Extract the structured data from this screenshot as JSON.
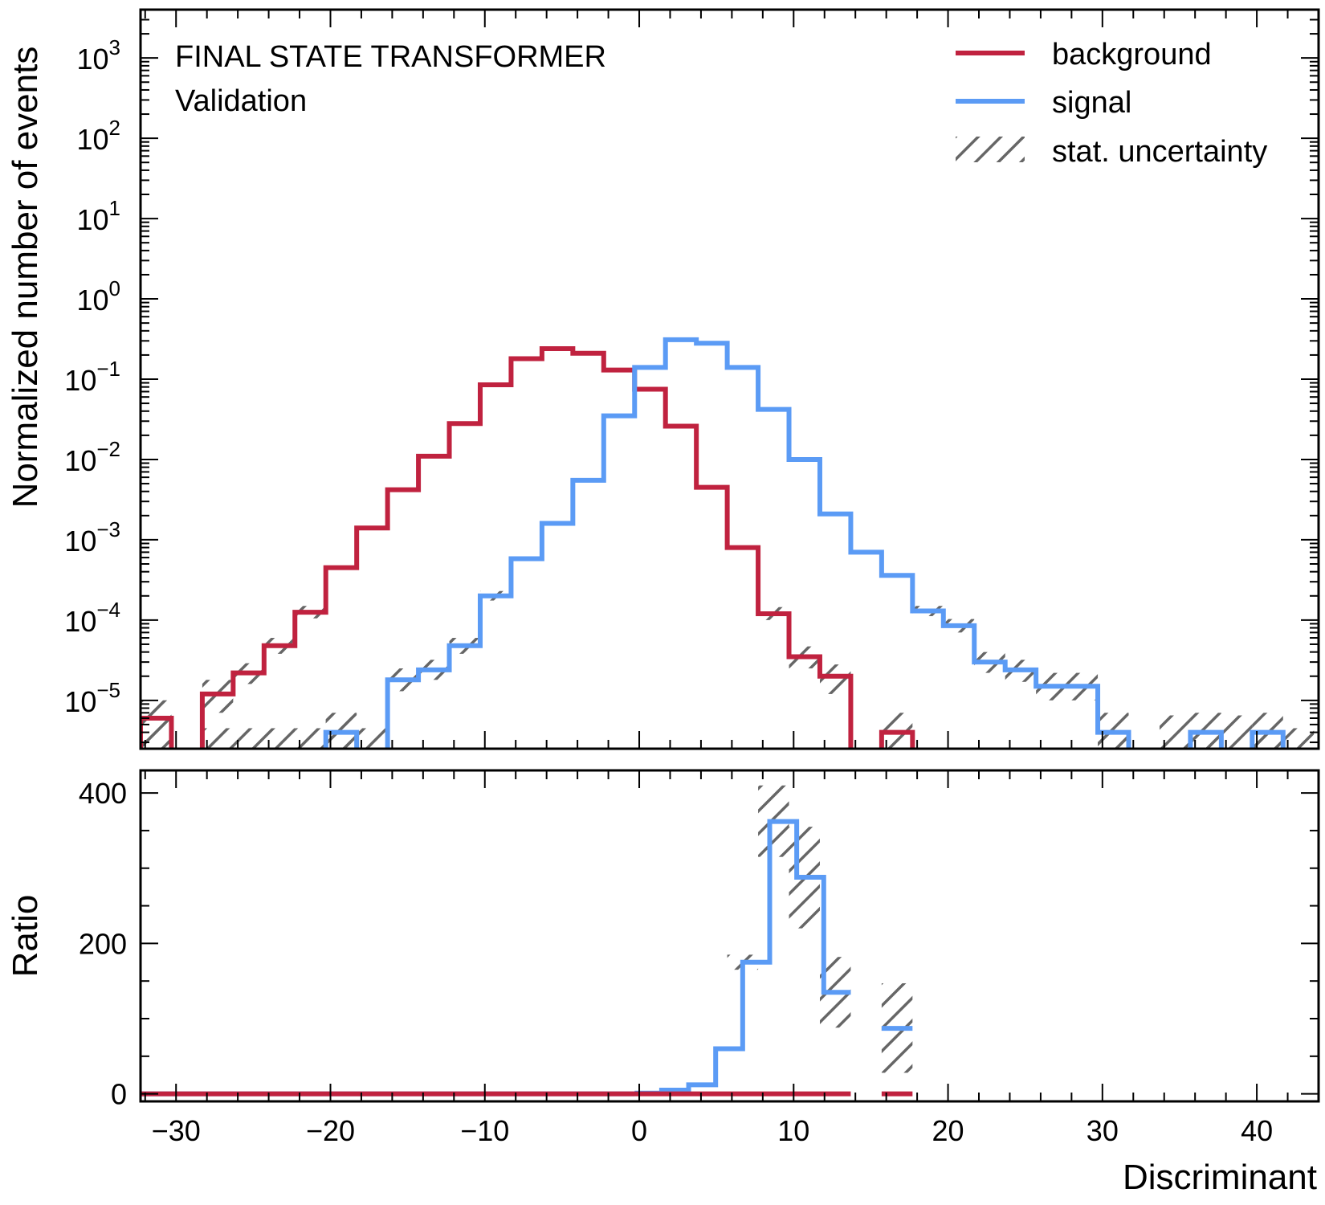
{
  "chart_data": [
    {
      "type": "step",
      "panel": "main",
      "annotations": [
        "FINAL STATE TRANSFORMER",
        "Validation"
      ],
      "xlabel": "",
      "ylabel": "Normalized number of events",
      "yscale": "log",
      "ylim": [
        2.5e-06,
        4000
      ],
      "y_ticks": [
        {
          "value": 1e-05,
          "base": "10",
          "exp": "−5"
        },
        {
          "value": 0.0001,
          "base": "10",
          "exp": "−4"
        },
        {
          "value": 0.001,
          "base": "10",
          "exp": "−3"
        },
        {
          "value": 0.01,
          "base": "10",
          "exp": "−2"
        },
        {
          "value": 0.1,
          "base": "10",
          "exp": "−1"
        },
        {
          "value": 1,
          "base": "10",
          "exp": "0"
        },
        {
          "value": 10,
          "base": "10",
          "exp": "1"
        },
        {
          "value": 100,
          "base": "10",
          "exp": "2"
        },
        {
          "value": 1000,
          "base": "10",
          "exp": "3"
        }
      ],
      "xlim": [
        -32.3,
        44
      ],
      "bin_edges": [
        -32.3,
        -30.3,
        -28.3,
        -26.3,
        -24.3,
        -22.3,
        -20.3,
        -18.3,
        -16.3,
        -14.3,
        -12.3,
        -10.3,
        -8.3,
        -6.3,
        -4.3,
        -2.3,
        -0.3,
        1.7,
        3.7,
        5.7,
        7.7,
        9.7,
        11.7,
        13.7,
        15.7,
        17.7,
        19.7,
        21.7,
        23.7,
        25.7,
        27.7,
        29.7,
        31.7,
        33.7,
        35.7,
        37.7,
        39.7,
        41.7,
        43.7
      ],
      "legend": {
        "position": "upper right",
        "entries": [
          "background",
          "signal",
          "stat. uncertainty"
        ]
      },
      "series": [
        {
          "name": "background",
          "color": "#c0223f",
          "values": [
            6e-06,
            0,
            1.2e-05,
            2.2e-05,
            4.8e-05,
            0.000125,
            0.00045,
            0.0014,
            0.0042,
            0.011,
            0.028,
            0.085,
            0.18,
            0.24,
            0.21,
            0.13,
            0.075,
            0.026,
            0.0045,
            0.0008,
            0.00012,
            3.5e-05,
            2e-05,
            0,
            4e-06,
            0,
            0,
            0,
            0,
            0,
            0,
            0,
            0,
            0,
            0,
            0,
            0,
            0
          ],
          "err_low": [
            3e-06,
            0,
            5e-06,
            6e-06,
            1e-05,
            2e-05,
            0,
            0,
            0,
            0,
            0,
            0,
            0,
            0,
            0,
            0,
            0,
            0,
            0,
            0,
            2e-05,
            1e-05,
            8e-06,
            0,
            2e-06,
            0,
            0,
            0,
            0,
            0,
            0,
            0,
            0,
            0,
            0,
            0,
            0,
            0
          ],
          "err_high": [
            4e-06,
            0,
            6e-06,
            7e-06,
            1.2e-05,
            2.5e-05,
            0,
            0,
            0,
            0,
            0,
            0,
            0,
            0,
            0,
            0,
            0,
            0,
            0,
            0,
            2.5e-05,
            1.2e-05,
            8e-06,
            0,
            3e-06,
            0,
            0,
            0,
            0,
            0,
            0,
            0,
            0,
            0,
            0,
            0,
            0,
            0
          ]
        },
        {
          "name": "signal",
          "color": "#5b9bf5",
          "values": [
            0,
            0,
            0,
            0,
            0,
            0,
            4e-06,
            0,
            1.8e-05,
            2.4e-05,
            4.8e-05,
            0.0002,
            0.00058,
            0.0016,
            0.0055,
            0.035,
            0.14,
            0.31,
            0.28,
            0.14,
            0.042,
            0.01,
            0.0021,
            0.0007,
            0.00036,
            0.00013,
            8.5e-05,
            3e-05,
            2.4e-05,
            1.5e-05,
            1.5e-05,
            4e-06,
            0,
            0,
            4e-06,
            0,
            4e-06,
            0
          ],
          "err_low": [
            0,
            0,
            0,
            0,
            0,
            0,
            2e-06,
            0,
            5e-06,
            6e-06,
            1e-05,
            2.5e-05,
            0,
            0,
            0,
            0,
            0,
            0,
            0,
            0,
            0,
            0,
            0,
            0,
            0,
            1.8e-05,
            1.5e-05,
            8e-06,
            7e-06,
            5e-06,
            5e-06,
            2e-06,
            0,
            0,
            2e-06,
            0,
            2e-06,
            0
          ],
          "err_high": [
            0,
            0,
            0,
            0,
            0,
            0,
            3e-06,
            0,
            7e-06,
            8e-06,
            1.2e-05,
            3e-05,
            0,
            0,
            0,
            0,
            0,
            0,
            0,
            0,
            0,
            0,
            0,
            0,
            0,
            2e-05,
            1.8e-05,
            1e-05,
            8e-06,
            7e-06,
            7e-06,
            3e-06,
            0,
            0,
            3e-06,
            0,
            3e-06,
            0
          ]
        }
      ],
      "uncertainty_band_extra_bins": [
        {
          "from": -32.3,
          "to": -30.3,
          "low": 3e-06,
          "high": 1e-05
        },
        {
          "from": -28.3,
          "to": -22.3,
          "low": 2.5e-06,
          "high": 4.5e-06
        },
        {
          "from": -22.3,
          "to": -20.3,
          "low": 2.5e-06,
          "high": 4.5e-06
        },
        {
          "from": -20.3,
          "to": -18.3,
          "low": 2.5e-06,
          "high": 6.5e-06
        },
        {
          "from": -18.3,
          "to": -16.3,
          "low": 2.5e-06,
          "high": 4.5e-06
        },
        {
          "from": 29.7,
          "to": 31.7,
          "low": 2.5e-06,
          "high": 4.5e-06
        },
        {
          "from": 33.7,
          "to": 35.7,
          "low": 2.5e-06,
          "high": 6.5e-06
        },
        {
          "from": 35.7,
          "to": 37.7,
          "low": 2.5e-06,
          "high": 4.5e-06
        },
        {
          "from": 37.7,
          "to": 39.7,
          "low": 2.5e-06,
          "high": 6.5e-06
        },
        {
          "from": 39.7,
          "to": 41.7,
          "low": 2.5e-06,
          "high": 4.5e-06
        },
        {
          "from": 41.7,
          "to": 43.7,
          "low": 2.5e-06,
          "high": 4.5e-06
        }
      ],
      "uncertainty_color": "#666666"
    },
    {
      "type": "step",
      "panel": "ratio",
      "xlabel": "Discriminant",
      "ylabel": "Ratio",
      "yscale": "linear",
      "ylim": [
        -10,
        430
      ],
      "y_ticks": [
        0,
        200,
        400
      ],
      "xlim": [
        -32.3,
        44
      ],
      "x_ticks": [
        -30,
        -20,
        -10,
        0,
        10,
        20,
        30,
        40
      ],
      "x_tick_labels": [
        "−30",
        "−20",
        "−10",
        "0",
        "10",
        "20",
        "30",
        "40"
      ],
      "series": [
        {
          "name": "signal",
          "color": "#5b9bf5",
          "segments": [
            {
              "from": -32.3,
              "to": -0.3,
              "values": [
                0,
                0,
                0,
                0,
                0,
                0,
                0,
                0,
                0,
                0,
                0,
                0,
                0,
                0,
                0,
                0
              ]
            },
            {
              "from": -0.3,
              "to": 13.7,
              "values": [
                1,
                5,
                12,
                60,
                175,
                362,
                288,
                135
              ]
            },
            {
              "from": 15.7,
              "to": 17.7,
              "values": [
                87
              ]
            }
          ]
        },
        {
          "name": "background",
          "color": "#c0223f",
          "segments": [
            {
              "from": -32.3,
              "to": 13.7,
              "values": [
                0,
                0,
                0,
                0,
                0,
                0,
                0,
                0,
                0,
                0,
                0,
                0,
                0,
                0,
                0,
                0,
                0,
                0,
                0,
                0,
                0,
                0,
                0
              ]
            },
            {
              "from": 15.7,
              "to": 17.7,
              "values": [
                0
              ]
            }
          ]
        }
      ],
      "uncertainty": [
        {
          "from": 5.7,
          "to": 7.7,
          "low": 165,
          "high": 185
        },
        {
          "from": 7.7,
          "to": 9.7,
          "low": 315,
          "high": 410
        },
        {
          "from": 9.7,
          "to": 11.7,
          "low": 220,
          "high": 355
        },
        {
          "from": 11.7,
          "to": 13.7,
          "low": 88,
          "high": 182
        },
        {
          "from": 15.7,
          "to": 17.7,
          "low": 28,
          "high": 147
        }
      ]
    }
  ]
}
